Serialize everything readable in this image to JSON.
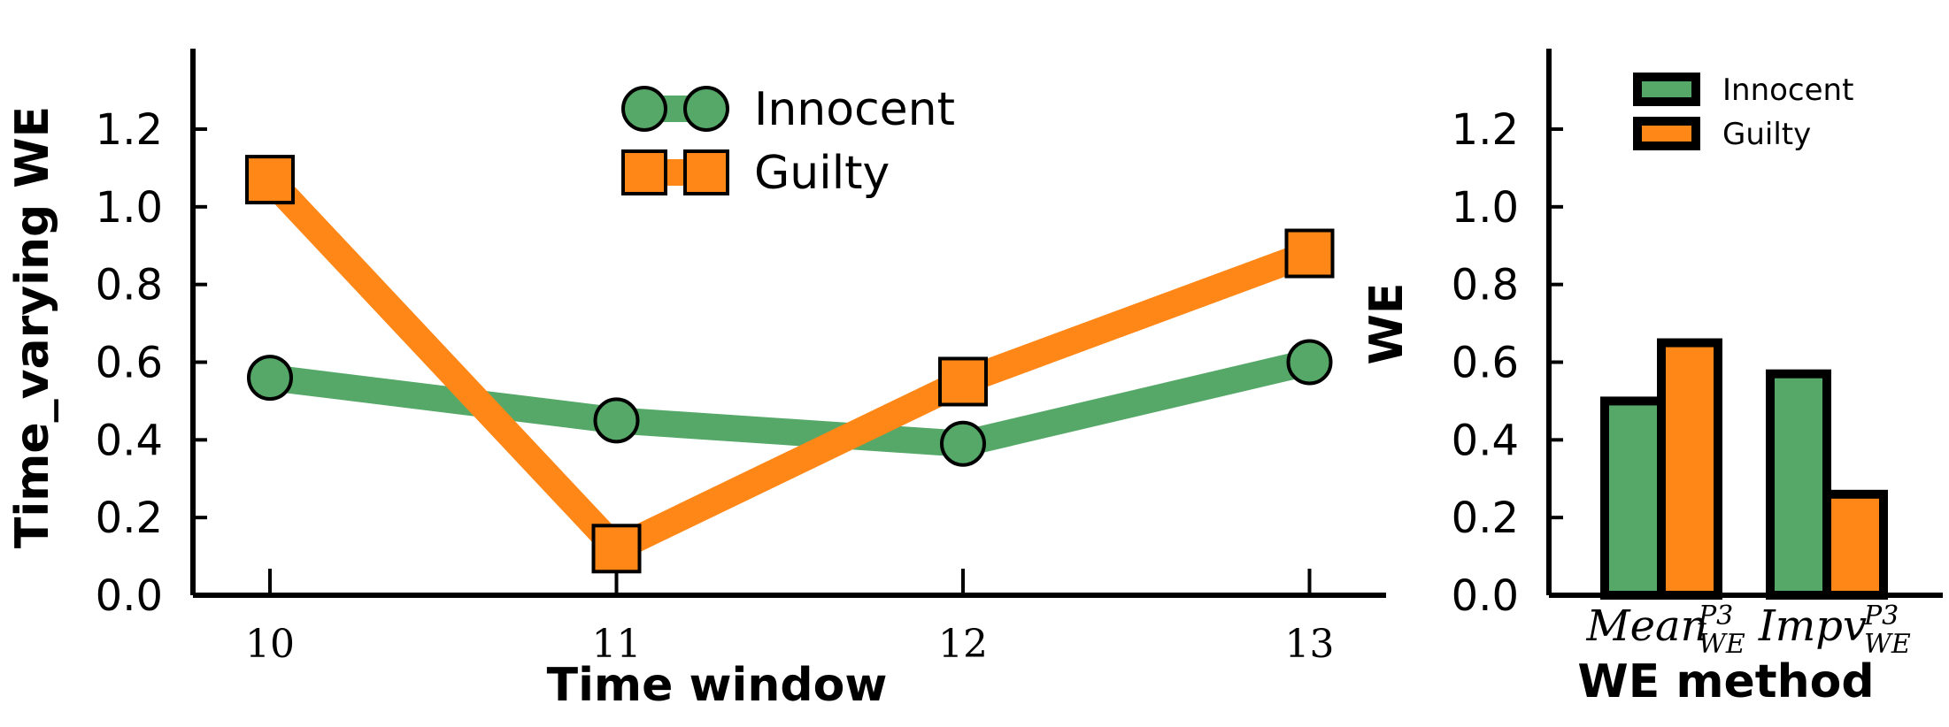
{
  "chart_data": [
    {
      "type": "line",
      "xlabel": "Time window",
      "ylabel": "Time_varying WE",
      "x": [
        10,
        11,
        12,
        13
      ],
      "ylim": [
        0,
        1.4
      ],
      "yticks": [
        "0.0",
        "0.2",
        "0.4",
        "0.6",
        "0.8",
        "1.0",
        "1.2"
      ],
      "series": [
        {
          "name": "Innocent",
          "values": [
            0.56,
            0.45,
            0.39,
            0.6
          ],
          "color": "#55a868",
          "marker": "circle"
        },
        {
          "name": "Guilty",
          "values": [
            1.07,
            0.12,
            0.55,
            0.88
          ],
          "color": "#ff8717",
          "marker": "square"
        }
      ],
      "legend": "top-center",
      "grid": false
    },
    {
      "type": "bar",
      "xlabel": "WE method",
      "ylabel": "WE",
      "categories": [
        {
          "base": "Mean",
          "sup": "P3",
          "sub": "WE"
        },
        {
          "base": "Impv",
          "sup": "P3",
          "sub": "WE"
        }
      ],
      "ylim": [
        0,
        1.4
      ],
      "yticks": [
        "0.0",
        "0.2",
        "0.4",
        "0.6",
        "0.8",
        "1.0",
        "1.2"
      ],
      "series": [
        {
          "name": "Innocent",
          "values": [
            0.5,
            0.57
          ],
          "color": "#55a868"
        },
        {
          "name": "Guilty",
          "values": [
            0.65,
            0.26
          ],
          "color": "#ff8717"
        }
      ],
      "legend": "top-center",
      "grid": false
    }
  ]
}
